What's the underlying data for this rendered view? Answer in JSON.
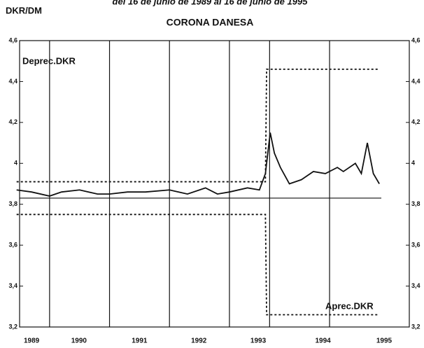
{
  "chart_data": {
    "type": "line",
    "title": "CORONA DANESA",
    "subtitle": "del 16 de junio de 1989 al 16 de junio de 1995",
    "y_label": "DKR/DM",
    "annotations": [
      "Deprec.DKR",
      "Aprec.DKR"
    ],
    "xlim": [
      1989.5,
      1996
    ],
    "xticks": [
      {
        "value": 1989.7,
        "label": "1989"
      },
      {
        "value": 1990.49,
        "label": "1990"
      },
      {
        "value": 1991.5,
        "label": "1991"
      },
      {
        "value": 1992.49,
        "label": "1992"
      },
      {
        "value": 1993.48,
        "label": "1993"
      },
      {
        "value": 1994.56,
        "label": "1994"
      },
      {
        "value": 1995.58,
        "label": "1995"
      }
    ],
    "vlines": [
      1990,
      1991,
      1992,
      1993,
      1993.67,
      1994.67
    ],
    "hline": 3.83,
    "ylim": [
      3.2,
      4.6
    ],
    "yticks": [
      {
        "value": 3.2,
        "label": "3,2"
      },
      {
        "value": 3.4,
        "label": "3,4"
      },
      {
        "value": 3.6,
        "label": "3,6"
      },
      {
        "value": 3.8,
        "label": "3,8"
      },
      4,
      {
        "value": 4.2,
        "label": "4,2"
      },
      {
        "value": 4.4,
        "label": "4,4"
      },
      {
        "value": 4.6,
        "label": "4,6"
      }
    ],
    "series": [
      {
        "name": "DKR/DM",
        "color": "#111111",
        "dash": "none",
        "x": [
          1989.45,
          1989.7,
          1990.0,
          1990.2,
          1990.5,
          1990.8,
          1991.0,
          1991.3,
          1991.6,
          1992.0,
          1992.3,
          1992.6,
          1992.8,
          1993.0,
          1993.3,
          1993.5,
          1993.6,
          1993.68,
          1993.75,
          1993.85,
          1994.0,
          1994.2,
          1994.4,
          1994.6,
          1994.8,
          1994.9,
          1995.1,
          1995.2,
          1995.3,
          1995.4,
          1995.5
        ],
        "values": [
          3.87,
          3.86,
          3.84,
          3.86,
          3.87,
          3.85,
          3.85,
          3.86,
          3.86,
          3.87,
          3.85,
          3.88,
          3.85,
          3.86,
          3.88,
          3.87,
          3.95,
          4.15,
          4.05,
          3.98,
          3.9,
          3.92,
          3.96,
          3.95,
          3.98,
          3.96,
          4.0,
          3.95,
          4.1,
          3.95,
          3.9
        ]
      },
      {
        "name": "Deprec.DKR",
        "color": "#111111",
        "dash": "3 3",
        "x": [
          1989.45,
          1993.6,
          1993.62,
          1995.5
        ],
        "values": [
          3.91,
          3.91,
          4.46,
          4.46
        ]
      },
      {
        "name": "Aprec.DKR",
        "color": "#111111",
        "dash": "3 3",
        "x": [
          1989.45,
          1993.6,
          1993.62,
          1995.5
        ],
        "values": [
          3.75,
          3.75,
          3.26,
          3.26
        ]
      }
    ]
  }
}
